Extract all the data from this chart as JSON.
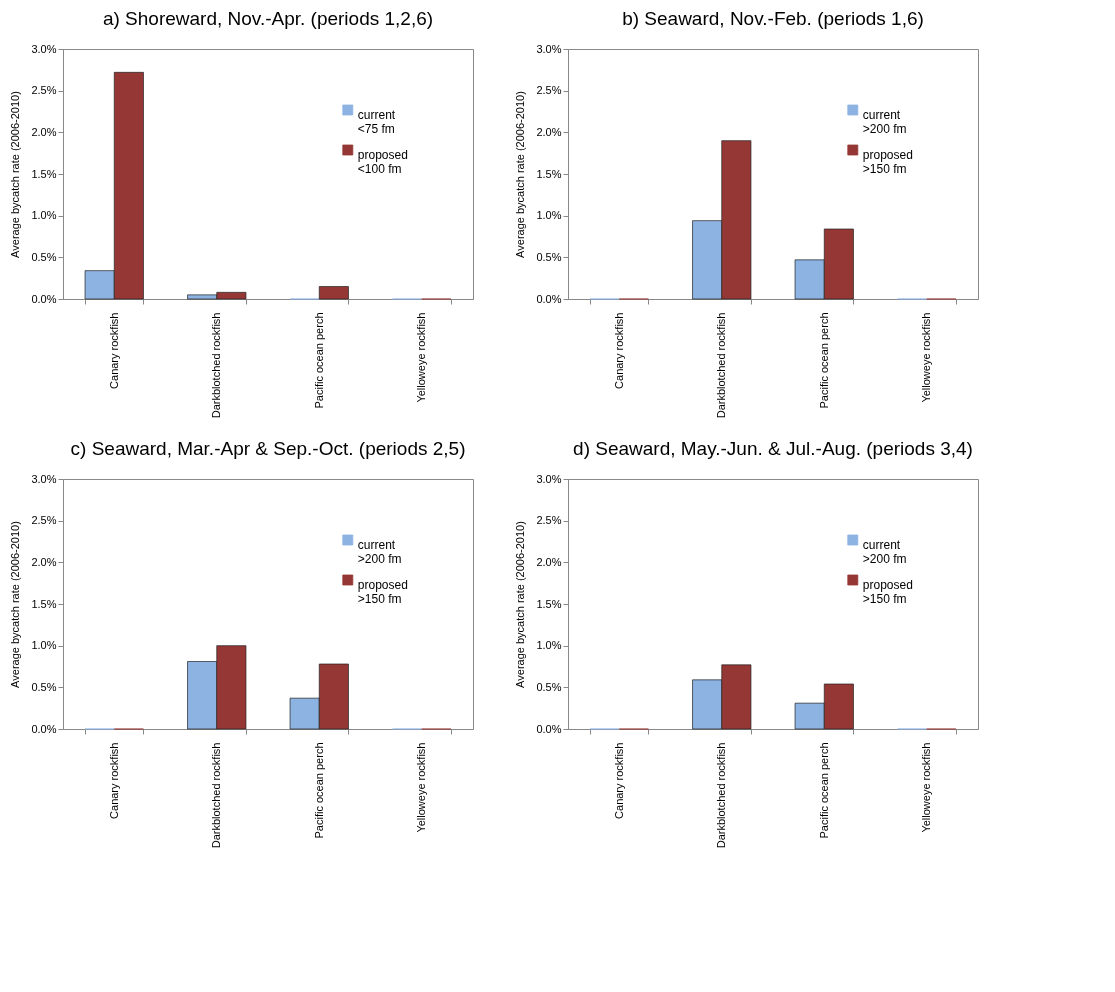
{
  "chart_data": [
    {
      "type": "bar",
      "title": "a) Shoreward, Nov.-Apr. (periods 1,2,6)",
      "ylabel": "Average bycatch rate (2006-2010)",
      "categories": [
        "Canary rockfish",
        "Darkblotched rockfish",
        "Pacific ocean perch",
        "Yelloweye rockfish"
      ],
      "ylim": [
        0,
        3
      ],
      "yticks": [
        {
          "value": 0,
          "label": "0.0%"
        },
        {
          "value": 0.5,
          "label": "0.5%"
        },
        {
          "value": 1,
          "label": "1.0%"
        },
        {
          "value": 1.5,
          "label": "1.5%"
        },
        {
          "value": 2,
          "label": "2.0%"
        },
        {
          "value": 2.5,
          "label": "2.5%"
        },
        {
          "value": 3,
          "label": "3.0%"
        }
      ],
      "legend": "top right",
      "grid": false,
      "series": [
        {
          "name": "current\n<75 fm",
          "color": "#8db3e2",
          "values": [
            0.34,
            0.05,
            0,
            0
          ]
        },
        {
          "name": "proposed\n<100 fm",
          "color": "#953735",
          "values": [
            2.72,
            0.08,
            0.15,
            0
          ]
        }
      ]
    },
    {
      "type": "bar",
      "title": "b) Seaward, Nov.-Feb. (periods 1,6)",
      "ylabel": "Average bycatch rate (2006-2010)",
      "categories": [
        "Canary rockfish",
        "Darkblotched rockfish",
        "Pacific ocean perch",
        "Yelloweye rockfish"
      ],
      "ylim": [
        0,
        3
      ],
      "yticks": [
        {
          "value": 0,
          "label": "0.0%"
        },
        {
          "value": 0.5,
          "label": "0.5%"
        },
        {
          "value": 1,
          "label": "1.0%"
        },
        {
          "value": 1.5,
          "label": "1.5%"
        },
        {
          "value": 2,
          "label": "2.0%"
        },
        {
          "value": 2.5,
          "label": "2.5%"
        },
        {
          "value": 3,
          "label": "3.0%"
        }
      ],
      "legend": "top right",
      "grid": false,
      "series": [
        {
          "name": "current\n>200 fm",
          "color": "#8db3e2",
          "values": [
            0,
            0.94,
            0.47,
            0
          ]
        },
        {
          "name": "proposed\n>150 fm",
          "color": "#953735",
          "values": [
            0,
            1.9,
            0.84,
            0
          ]
        }
      ]
    },
    {
      "type": "bar",
      "title": "c) Seaward, Mar.-Apr & Sep.-Oct. (periods 2,5)",
      "ylabel": "Average bycatch rate (2006-2010)",
      "categories": [
        "Canary rockfish",
        "Darkblotched rockfish",
        "Pacific ocean perch",
        "Yelloweye rockfish"
      ],
      "ylim": [
        0,
        3
      ],
      "yticks": [
        {
          "value": 0,
          "label": "0.0%"
        },
        {
          "value": 0.5,
          "label": "0.5%"
        },
        {
          "value": 1,
          "label": "1.0%"
        },
        {
          "value": 1.5,
          "label": "1.5%"
        },
        {
          "value": 2,
          "label": "2.0%"
        },
        {
          "value": 2.5,
          "label": "2.5%"
        },
        {
          "value": 3,
          "label": "3.0%"
        }
      ],
      "legend": "top right",
      "grid": false,
      "series": [
        {
          "name": "current\n>200 fm",
          "color": "#8db3e2",
          "values": [
            0,
            0.81,
            0.37,
            0
          ]
        },
        {
          "name": "proposed\n>150 fm",
          "color": "#953735",
          "values": [
            0,
            1.0,
            0.78,
            0
          ]
        }
      ]
    },
    {
      "type": "bar",
      "title": "d) Seaward, May.-Jun. & Jul.-Aug. (periods 3,4)",
      "ylabel": "Average bycatch rate (2006-2010)",
      "categories": [
        "Canary rockfish",
        "Darkblotched rockfish",
        "Pacific ocean perch",
        "Yelloweye rockfish"
      ],
      "ylim": [
        0,
        3
      ],
      "yticks": [
        {
          "value": 0,
          "label": "0.0%"
        },
        {
          "value": 0.5,
          "label": "0.5%"
        },
        {
          "value": 1,
          "label": "1.0%"
        },
        {
          "value": 1.5,
          "label": "1.5%"
        },
        {
          "value": 2,
          "label": "2.0%"
        },
        {
          "value": 2.5,
          "label": "2.5%"
        },
        {
          "value": 3,
          "label": "3.0%"
        }
      ],
      "legend": "top right",
      "grid": false,
      "series": [
        {
          "name": "current\n>200 fm",
          "color": "#8db3e2",
          "values": [
            0,
            0.59,
            0.31,
            0
          ]
        },
        {
          "name": "proposed\n>150 fm",
          "color": "#953735",
          "values": [
            0,
            0.77,
            0.54,
            0
          ]
        }
      ]
    }
  ]
}
